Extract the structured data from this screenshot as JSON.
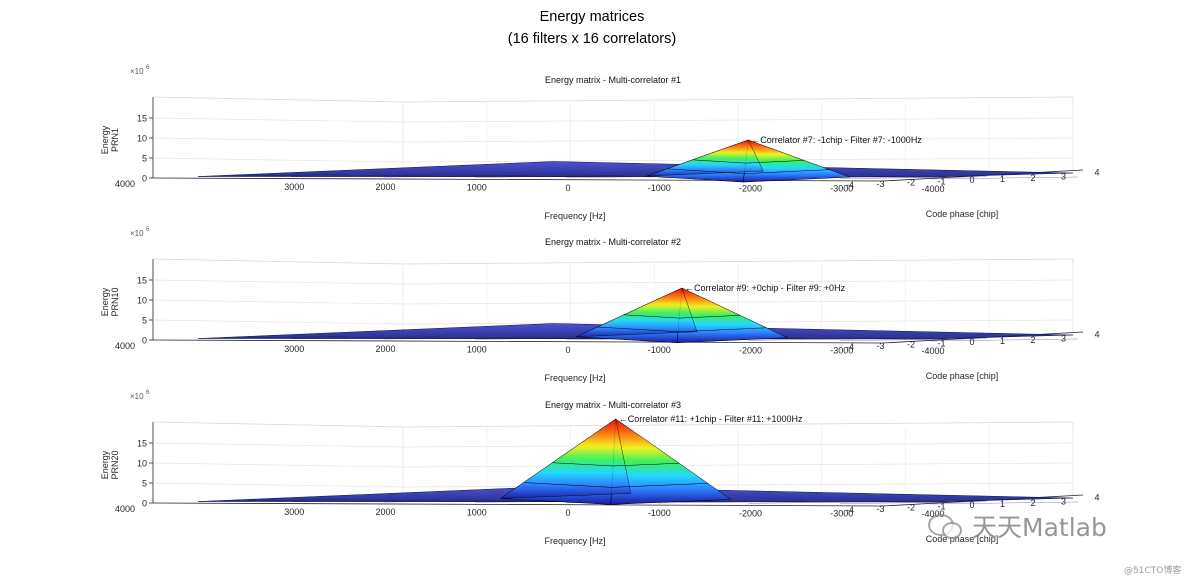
{
  "figure": {
    "title_line1": "Energy matrices",
    "title_line2": "(16 filters x 16 correlators)"
  },
  "watermark": {
    "brand": "天天Matlab",
    "site": "@51CTO博客",
    "icon": "wechat-icon"
  },
  "chart_data": [
    {
      "type": "surface",
      "title": "Energy matrix - Multi-correlator #1",
      "xlabel": "Frequency [Hz]",
      "ylabel": "Code phase [chip]",
      "zlabel_lines": [
        "Energy",
        "PRN1"
      ],
      "z_exponent_label": "×10",
      "z_exponent": "6",
      "z_ticks": [
        "0",
        "5",
        "10",
        "15"
      ],
      "z_lim": [
        0,
        20000000
      ],
      "freq_ticks": [
        "4000",
        "3000",
        "2000",
        "1000",
        "0",
        "-1000",
        "-2000",
        "-3000",
        "-4000"
      ],
      "freq_lim": [
        4000,
        -4000
      ],
      "code_ticks": [
        "-4",
        "-3",
        "-2",
        "-1",
        "0",
        "1",
        "2",
        "3",
        "4"
      ],
      "code_lim": [
        -4,
        4
      ],
      "peak": {
        "freq_hz": -1000,
        "code_chip": -1,
        "energy": 9500000
      },
      "annotation": "Correlator #7: -1chip - Filter #7: -1000Hz",
      "grid": true,
      "colormap": "jet"
    },
    {
      "type": "surface",
      "title": "Energy matrix - Multi-correlator #2",
      "xlabel": "Frequency [Hz]",
      "ylabel": "Code phase [chip]",
      "zlabel_lines": [
        "Energy",
        "PRN10"
      ],
      "z_exponent_label": "×10",
      "z_exponent": "6",
      "z_ticks": [
        "0",
        "5",
        "10",
        "15"
      ],
      "z_lim": [
        0,
        20000000
      ],
      "freq_ticks": [
        "4000",
        "3000",
        "2000",
        "1000",
        "0",
        "-1000",
        "-2000",
        "-3000",
        "-4000"
      ],
      "freq_lim": [
        4000,
        -4000
      ],
      "code_ticks": [
        "-4",
        "-3",
        "-2",
        "-1",
        "0",
        "1",
        "2",
        "3",
        "4"
      ],
      "code_lim": [
        -4,
        4
      ],
      "peak": {
        "freq_hz": 0,
        "code_chip": 0,
        "energy": 13000000
      },
      "annotation": "Correlator #9: +0chip - Filter #9: +0Hz",
      "grid": true,
      "colormap": "jet"
    },
    {
      "type": "surface",
      "title": "Energy matrix - Multi-correlator #3",
      "xlabel": "Frequency [Hz]",
      "ylabel": "Code phase [chip]",
      "zlabel_lines": [
        "Energy",
        "PRN20"
      ],
      "z_exponent_label": "×10",
      "z_exponent": "6",
      "z_ticks": [
        "0",
        "5",
        "10",
        "15"
      ],
      "z_lim": [
        0,
        20000000
      ],
      "freq_ticks": [
        "4000",
        "3000",
        "2000",
        "1000",
        "0",
        "-1000",
        "-2000",
        "-3000",
        "-4000"
      ],
      "freq_lim": [
        4000,
        -4000
      ],
      "code_ticks": [
        "-4",
        "-3",
        "-2",
        "-1",
        "0",
        "1",
        "2",
        "3",
        "4"
      ],
      "code_lim": [
        -4,
        4
      ],
      "peak": {
        "freq_hz": 1000,
        "code_chip": 1,
        "energy": 21000000
      },
      "annotation": "Correlator #11: +1chip - Filter #11: +1000Hz",
      "grid": true,
      "colormap": "jet"
    }
  ]
}
